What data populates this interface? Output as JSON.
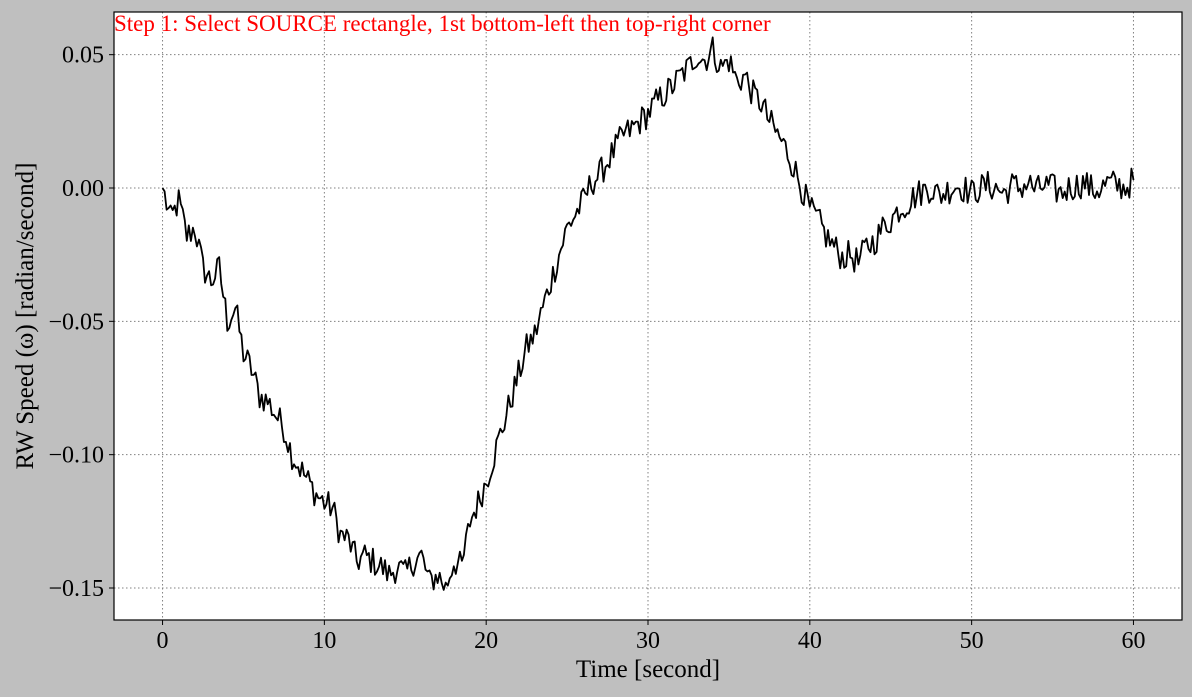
{
  "instruction": {
    "text": "Step 1: Select SOURCE rectangle, 1st bottom-left then top-right corner",
    "color": "#ff0000"
  },
  "colors": {
    "figure_background": "#bfbfbf",
    "plot_background": "#ffffff",
    "line": "#000000",
    "grid": "#808080"
  },
  "chart_data": {
    "type": "line",
    "title": "",
    "xlabel": "Time [second]",
    "ylabel": "RW Speed (ω) [radian/second]",
    "xlim": [
      -3,
      63
    ],
    "ylim": [
      -0.162,
      0.066
    ],
    "grid": true,
    "grid_style": "dotted",
    "x_ticks": [
      0,
      10,
      20,
      30,
      40,
      50,
      60
    ],
    "x_tick_labels": [
      "0",
      "10",
      "20",
      "30",
      "40",
      "50",
      "60"
    ],
    "y_ticks": [
      0.05,
      0.0,
      -0.05,
      -0.1,
      -0.15
    ],
    "y_tick_labels": [
      "0.05",
      "0.00",
      "−0.05",
      "−0.10",
      "−0.15"
    ],
    "series": [
      {
        "color": "#000000",
        "x": [
          0,
          0.5,
          1,
          1.5,
          2,
          2.5,
          3,
          3.5,
          4,
          4.5,
          5,
          5.5,
          6,
          6.5,
          7,
          7.5,
          8,
          8.5,
          9,
          9.5,
          10,
          10.5,
          11,
          11.5,
          12,
          12.5,
          13,
          13.5,
          14,
          14.5,
          15,
          15.5,
          16,
          16.5,
          17,
          17.5,
          18,
          18.5,
          19,
          19.5,
          20,
          20.5,
          21,
          21.5,
          22,
          22.5,
          23,
          23.5,
          24,
          24.5,
          25,
          25.5,
          26,
          26.5,
          27,
          27.5,
          28,
          28.5,
          29,
          29.5,
          30,
          30.5,
          31,
          31.5,
          32,
          32.5,
          33,
          33.5,
          34,
          34.5,
          35,
          35.5,
          36,
          36.5,
          37,
          37.5,
          38,
          38.5,
          39,
          39.5,
          40,
          40.5,
          41,
          41.5,
          42,
          42.5,
          43,
          43.5,
          44,
          44.5,
          45,
          45.5,
          46,
          46.5,
          47,
          47.5,
          48,
          48.5,
          49,
          49.5,
          50,
          50.5,
          51,
          51.5,
          52,
          52.5,
          53,
          53.5,
          54,
          54.5,
          55,
          55.5,
          56,
          56.5,
          57,
          57.5,
          58,
          58.5,
          59,
          59.5,
          60
        ],
        "y": [
          0.0,
          -0.012,
          -0.005,
          -0.018,
          -0.015,
          -0.03,
          -0.035,
          -0.03,
          -0.05,
          -0.045,
          -0.062,
          -0.068,
          -0.078,
          -0.08,
          -0.085,
          -0.09,
          -0.1,
          -0.105,
          -0.11,
          -0.115,
          -0.118,
          -0.12,
          -0.13,
          -0.132,
          -0.14,
          -0.138,
          -0.14,
          -0.142,
          -0.145,
          -0.142,
          -0.145,
          -0.14,
          -0.138,
          -0.148,
          -0.145,
          -0.15,
          -0.14,
          -0.142,
          -0.125,
          -0.118,
          -0.11,
          -0.1,
          -0.09,
          -0.08,
          -0.07,
          -0.06,
          -0.055,
          -0.045,
          -0.035,
          -0.025,
          -0.015,
          -0.01,
          -0.005,
          0.002,
          0.005,
          0.01,
          0.015,
          0.02,
          0.022,
          0.025,
          0.028,
          0.032,
          0.035,
          0.038,
          0.042,
          0.045,
          0.05,
          0.048,
          0.052,
          0.045,
          0.048,
          0.04,
          0.042,
          0.035,
          0.032,
          0.025,
          0.02,
          0.015,
          0.008,
          0.0,
          -0.008,
          -0.012,
          -0.018,
          -0.022,
          -0.026,
          -0.025,
          -0.028,
          -0.022,
          -0.02,
          -0.015,
          -0.012,
          -0.008,
          -0.006,
          -0.003,
          -0.001,
          0.0,
          -0.003,
          -0.001,
          0.001,
          0.0,
          -0.002,
          0.0,
          0.001,
          0.0,
          -0.002,
          0.001,
          0.0,
          0.002,
          -0.001,
          0.001,
          0.0,
          -0.002,
          0.0,
          0.001,
          0.002,
          -0.001,
          0.0,
          0.002,
          0.001,
          0.0,
          0.003
        ]
      }
    ]
  }
}
